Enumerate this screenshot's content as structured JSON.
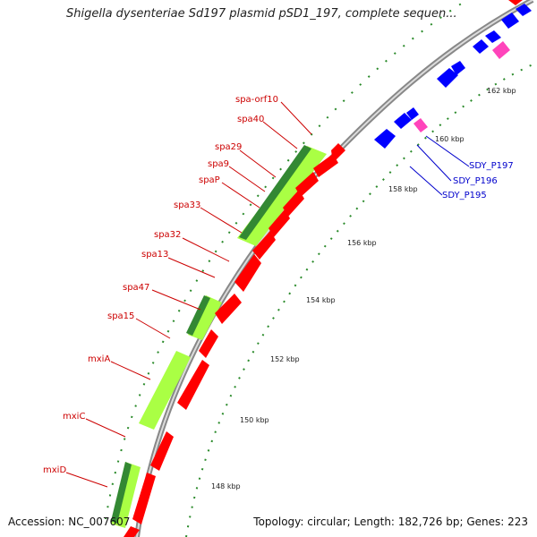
{
  "title": "Shigella dysenteriae Sd197 plasmid pSD1_197, complete sequen...",
  "accession": "Accession: NC_007607",
  "topology": "Topology: circular; Length: 182,726 bp; Genes: 223",
  "colors": {
    "backbone": "#999999",
    "forward_cds": "#ff0000",
    "reverse_cds": "#0000ff",
    "misc_feature": "#ff44bb",
    "highlight_light": "#aaff44",
    "highlight_dark": "#338833",
    "label_red": "#cc0000",
    "label_blue": "#0000cc",
    "tick_dots": "#2a8a2a"
  },
  "ticks": [
    "148 kbp",
    "150 kbp",
    "152 kbp",
    "154 kbp",
    "156 kbp",
    "158 kbp",
    "160 kbp",
    "162 kbp"
  ],
  "genes_left": [
    "spa-orf10",
    "spa40",
    "spa29",
    "spa9",
    "spaP",
    "spa33",
    "spa32",
    "spa13",
    "spa47",
    "spa15",
    "mxiA",
    "mxiC",
    "mxiD"
  ],
  "genes_right": [
    "SDY_P197",
    "SDY_P196",
    "SDY_P195"
  ]
}
